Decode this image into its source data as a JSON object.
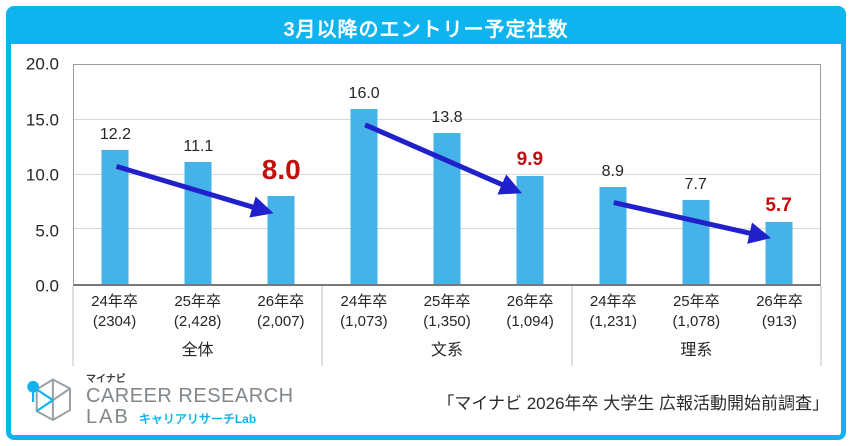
{
  "title": "3月以降のエントリー予定社数",
  "source": "「マイナビ 2026年卒 大学生 広報活動開始前調査」",
  "logo": {
    "small": "マイナビ",
    "line1": "CAREER RESEARCH",
    "line2": "LAB",
    "sub": "キャリアリサーチLab"
  },
  "colors": {
    "accent_cyan": "#0fb3ee",
    "bar_blue": "#45b2e8",
    "arrow_blue": "#2121cc",
    "highlight_red": "#c50d0d"
  },
  "chart_data": {
    "type": "bar",
    "title": "3月以降のエントリー予定社数",
    "ylim": [
      0,
      20
    ],
    "ytick_labels": [
      "0.0",
      "5.0",
      "10.0",
      "15.0",
      "20.0"
    ],
    "grid": true,
    "legend": "none",
    "groups": [
      {
        "label": "全体",
        "bars": [
          {
            "category": "24年卒",
            "n": "(2304)",
            "value": 12.2,
            "value_label": "12.2",
            "highlight": false
          },
          {
            "category": "25年卒",
            "n": "(2,428)",
            "value": 11.1,
            "value_label": "11.1",
            "highlight": false
          },
          {
            "category": "26年卒",
            "n": "(2,007)",
            "value": 8.0,
            "value_label": "8.0",
            "highlight": true,
            "big": true
          }
        ]
      },
      {
        "label": "文系",
        "bars": [
          {
            "category": "24年卒",
            "n": "(1,073)",
            "value": 16.0,
            "value_label": "16.0",
            "highlight": false
          },
          {
            "category": "25年卒",
            "n": "(1,350)",
            "value": 13.8,
            "value_label": "13.8",
            "highlight": false
          },
          {
            "category": "26年卒",
            "n": "(1,094)",
            "value": 9.9,
            "value_label": "9.9",
            "highlight": true
          }
        ]
      },
      {
        "label": "理系",
        "bars": [
          {
            "category": "24年卒",
            "n": "(1,231)",
            "value": 8.9,
            "value_label": "8.9",
            "highlight": false
          },
          {
            "category": "25年卒",
            "n": "(1,078)",
            "value": 7.7,
            "value_label": "7.7",
            "highlight": false
          },
          {
            "category": "26年卒",
            "n": "(913)",
            "value": 5.7,
            "value_label": "5.7",
            "highlight": true
          }
        ]
      }
    ],
    "arrows": [
      {
        "group": 0,
        "from": 0,
        "to": 2
      },
      {
        "group": 1,
        "from": 0,
        "to": 2
      },
      {
        "group": 2,
        "from": 0,
        "to": 2
      }
    ]
  }
}
